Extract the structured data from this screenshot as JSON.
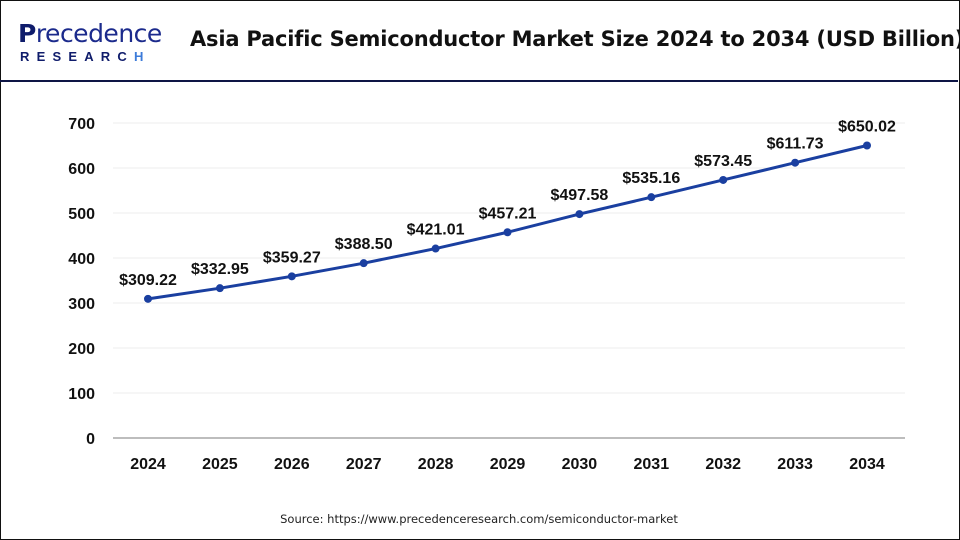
{
  "header": {
    "logo_line1": "Precedence",
    "logo_line1_rest": "recedence",
    "logo_line1_initial": "P",
    "logo_line2": "RESEARC",
    "logo_line2_last": "H",
    "title": "Asia Pacific Semiconductor Market Size 2024 to 2034 (USD Billion)"
  },
  "colors": {
    "line": "#1a3fa0",
    "marker": "#1a3fa0",
    "grid": "#ececec",
    "axis": "#bdbdbd",
    "header_rule": "#0e1545",
    "logo_dark": "#0f1c6b",
    "logo_accent": "#3c7bd9"
  },
  "footer": {
    "source": "Source: https://www.precedenceresearch.com/semiconductor-market"
  },
  "chart_data": {
    "type": "line",
    "title": "Asia Pacific Semiconductor Market Size 2024 to 2034 (USD Billion)",
    "xlabel": "",
    "ylabel": "",
    "categories": [
      "2024",
      "2025",
      "2026",
      "2027",
      "2028",
      "2029",
      "2030",
      "2031",
      "2032",
      "2033",
      "2034"
    ],
    "series": [
      {
        "name": "Asia Pacific Semiconductor Market Size (USD Billion)",
        "values": [
          309.22,
          332.95,
          359.27,
          388.5,
          421.01,
          457.21,
          497.58,
          535.16,
          573.45,
          611.73,
          650.02
        ],
        "labels": [
          "$309.22",
          "$332.95",
          "$359.27",
          "$388.50",
          "$421.01",
          "$457.21",
          "$497.58",
          "$535.16",
          "$573.45",
          "$611.73",
          "$650.02"
        ]
      }
    ],
    "yticks": [
      0,
      100,
      200,
      300,
      400,
      500,
      600,
      700
    ],
    "ylim": [
      0,
      700
    ],
    "grid": true,
    "legend": "none",
    "data_labels": true
  }
}
